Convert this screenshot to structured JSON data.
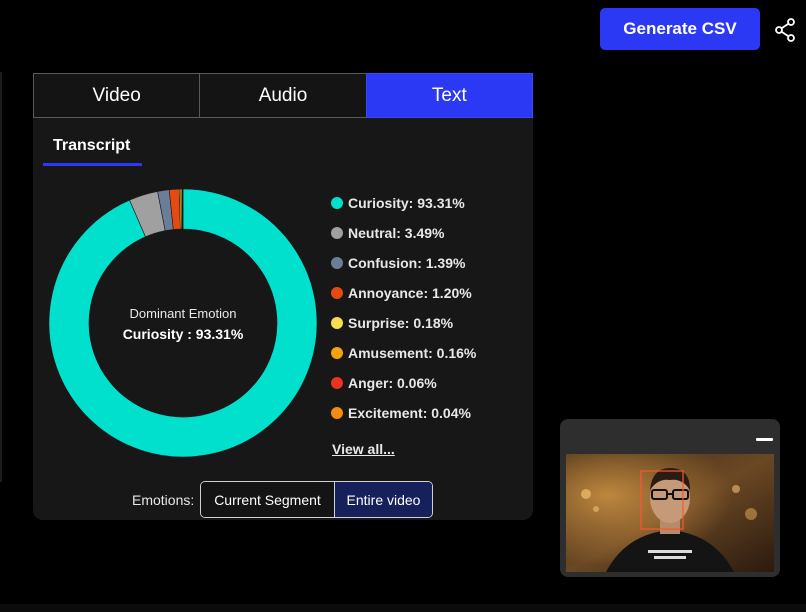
{
  "header": {
    "generate_label": "Generate CSV",
    "share_icon": "share-icon"
  },
  "tabs": [
    {
      "label": "Video",
      "active": false
    },
    {
      "label": "Audio",
      "active": false
    },
    {
      "label": "Text",
      "active": true
    }
  ],
  "subtab": {
    "label": "Transcript"
  },
  "donut": {
    "title": "Dominant Emotion",
    "value_text": "Curiosity : 93.31%"
  },
  "emotions": [
    {
      "name": "Curiosity",
      "percent": 93.31,
      "label": "Curiosity: 93.31%",
      "color": "#00e0cc"
    },
    {
      "name": "Neutral",
      "percent": 3.49,
      "label": "Neutral: 3.49%",
      "color": "#a0a0a0"
    },
    {
      "name": "Confusion",
      "percent": 1.39,
      "label": "Confusion: 1.39%",
      "color": "#6a7e97"
    },
    {
      "name": "Annoyance",
      "percent": 1.2,
      "label": "Annoyance: 1.20%",
      "color": "#e64a10"
    },
    {
      "name": "Surprise",
      "percent": 0.18,
      "label": "Surprise: 0.18%",
      "color": "#f5dd4e"
    },
    {
      "name": "Amusement",
      "percent": 0.16,
      "label": "Amusement: 0.16%",
      "color": "#f5a20c"
    },
    {
      "name": "Anger",
      "percent": 0.06,
      "label": "Anger: 0.06%",
      "color": "#e83420"
    },
    {
      "name": "Excitement",
      "percent": 0.04,
      "label": "Excitement: 0.04%",
      "color": "#f58a10"
    }
  ],
  "view_all": "View all...",
  "filter": {
    "label": "Emotions:",
    "options": [
      "Current Segment",
      "Entire video"
    ],
    "selected": "Entire video"
  },
  "colors": {
    "accent": "#2b39f5",
    "selected_segment": "#16205a",
    "panel": "#171717"
  }
}
